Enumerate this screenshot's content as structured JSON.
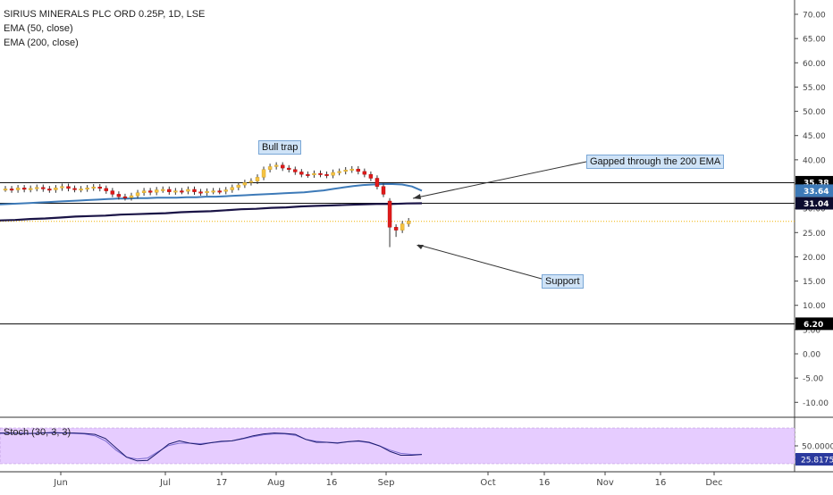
{
  "legend": {
    "symbol": "SIRIUS MINERALS PLC ORD 0.25P, 1D, LSE",
    "ema50": "EMA (50, close)",
    "ema200": "EMA (200, close)"
  },
  "annotations": {
    "bull_trap": "Bull trap",
    "gap": "Gapped through the 200 EMA",
    "support": "Support"
  },
  "stoch_label": "Stoch (30, 3, 3)",
  "price_axis": {
    "ticks": [
      "70.00",
      "65.00",
      "60.00",
      "55.00",
      "50.00",
      "45.00",
      "40.00",
      "35.00",
      "30.00",
      "25.00",
      "20.00",
      "15.00",
      "10.00",
      "5.00",
      "0.00",
      "-5.00",
      "-10.00"
    ],
    "values": [
      70,
      65,
      60,
      55,
      50,
      45,
      40,
      35,
      30,
      25,
      20,
      15,
      10,
      5,
      0,
      -5,
      -10
    ]
  },
  "price_labels": [
    {
      "text": "35.38",
      "value": 35.38,
      "color": "#000000"
    },
    {
      "text": "33.64",
      "value": 33.64,
      "color": "#3d7ab8"
    },
    {
      "text": "31.04",
      "value": 31.04,
      "color": "#0c0c2e"
    },
    {
      "text": "6.20",
      "value": 6.2,
      "color": "#000000"
    }
  ],
  "stoch_axis": {
    "ticks": [
      "50.0000"
    ],
    "current": "25.8175"
  },
  "time_axis": [
    "Jun",
    "Jul",
    "17",
    "Aug",
    "16",
    "Sep",
    "Oct",
    "16",
    "Nov",
    "16",
    "Dec"
  ],
  "colors": {
    "up": "#f5c242",
    "down": "#e01b1b",
    "ema50": "#3d7ab8",
    "ema200": "#1a1446",
    "stoch_bg": "#e6ccff",
    "note_bg": "#cfe3f7"
  },
  "chart_data": {
    "type": "candlestick",
    "title": "SIRIUS MINERALS PLC ORD 0.25P, 1D, LSE",
    "ylim": [
      -13,
      73
    ],
    "horizontal_levels": [
      35.38,
      31.04,
      6.2
    ],
    "dotted_level": 27.3,
    "ohlc_close": [
      34,
      33.8,
      34.2,
      33.9,
      34.1,
      34.3,
      34.0,
      33.8,
      34.2,
      34.5,
      34.1,
      33.9,
      34.0,
      34.2,
      34.4,
      34.1,
      33.6,
      32.9,
      32.4,
      32.2,
      32.6,
      33.2,
      33.6,
      33.3,
      33.8,
      33.9,
      33.4,
      33.6,
      33.5,
      33.9,
      33.4,
      33.2,
      33.5,
      33.6,
      33.5,
      33.8,
      34.3,
      34.8,
      35.3,
      35.6,
      36.4,
      38.0,
      38.6,
      38.9,
      38.3,
      38.0,
      37.5,
      37.0,
      36.9,
      37.2,
      37.0,
      36.8,
      37.4,
      37.6,
      37.9,
      38.1,
      37.6,
      37.0,
      36.2,
      34.5,
      32.9,
      26.1,
      25.5,
      26.8,
      27.4
    ],
    "ema50": [
      30.8,
      30.9,
      31.0,
      31.1,
      31.2,
      31.3,
      31.4,
      31.5,
      31.6,
      31.7,
      31.8,
      31.9,
      32.0,
      32.0,
      32.1,
      32.1,
      32.2,
      32.2,
      32.2,
      32.3,
      32.3,
      32.4,
      32.4,
      32.5,
      32.6,
      32.7,
      32.8,
      32.9,
      33.0,
      33.1,
      33.2,
      33.3,
      33.5,
      33.7,
      34.0,
      34.3,
      34.6,
      34.8,
      34.9,
      35.0,
      35.0,
      34.9,
      34.5,
      33.64
    ],
    "ema200": [
      27.5,
      27.6,
      27.8,
      27.9,
      28.1,
      28.3,
      28.4,
      28.5,
      28.7,
      28.8,
      28.9,
      29.0,
      29.2,
      29.3,
      29.4,
      29.6,
      29.8,
      29.9,
      30.1,
      30.2,
      30.4,
      30.5,
      30.6,
      30.7,
      30.8,
      30.9,
      30.9,
      31.0,
      31.04
    ],
    "stoch_k": [
      72,
      72,
      71,
      71,
      72,
      73,
      72,
      72,
      71,
      69,
      60,
      40,
      20,
      12,
      13,
      30,
      48,
      55,
      50,
      47,
      51,
      54,
      55,
      60,
      66,
      70,
      72,
      71,
      69,
      58,
      52,
      52,
      50,
      53,
      55,
      52,
      44,
      32,
      24,
      24,
      25.8
    ],
    "stoch_d": [
      71,
      71,
      72,
      71,
      72,
      72,
      72,
      71,
      70,
      66,
      55,
      35,
      20,
      16,
      18,
      32,
      45,
      50,
      50,
      49,
      51,
      53,
      55,
      59,
      64,
      68,
      70,
      70,
      67,
      58,
      54,
      52,
      51,
      53,
      54,
      51,
      44,
      35,
      28,
      26,
      25.8
    ],
    "x_categories": [
      "Jun",
      "Jul",
      "17",
      "Aug",
      "16",
      "Sep",
      "Oct",
      "16",
      "Nov",
      "16",
      "Dec"
    ]
  }
}
